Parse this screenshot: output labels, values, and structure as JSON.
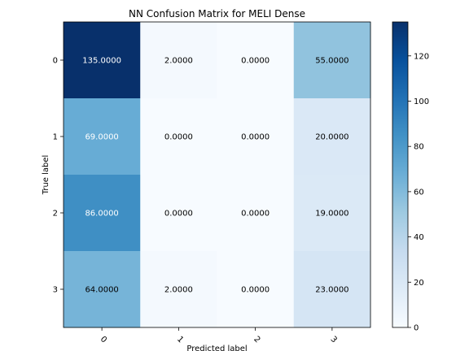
{
  "chart_data": {
    "type": "heatmap",
    "title": "NN Confusion Matrix for MELI Dense",
    "xlabel": "Predicted label",
    "ylabel": "True label",
    "x_categories": [
      "0",
      "1",
      "2",
      "3"
    ],
    "y_categories": [
      "0",
      "1",
      "2",
      "3"
    ],
    "values": [
      [
        135,
        2,
        0,
        55
      ],
      [
        69,
        0,
        0,
        20
      ],
      [
        86,
        0,
        0,
        19
      ],
      [
        64,
        2,
        0,
        23
      ]
    ],
    "cell_labels": [
      [
        "135.0000",
        "2.0000",
        "0.0000",
        "55.0000"
      ],
      [
        "69.0000",
        "0.0000",
        "0.0000",
        "20.0000"
      ],
      [
        "86.0000",
        "0.0000",
        "0.0000",
        "19.0000"
      ],
      [
        "64.0000",
        "2.0000",
        "0.0000",
        "23.0000"
      ]
    ],
    "colormap": "Blues",
    "vmin": 0,
    "vmax": 135,
    "colorbar_ticks": [
      0,
      20,
      40,
      60,
      80,
      100,
      120
    ],
    "grid": false,
    "colorbar_position": "right"
  }
}
